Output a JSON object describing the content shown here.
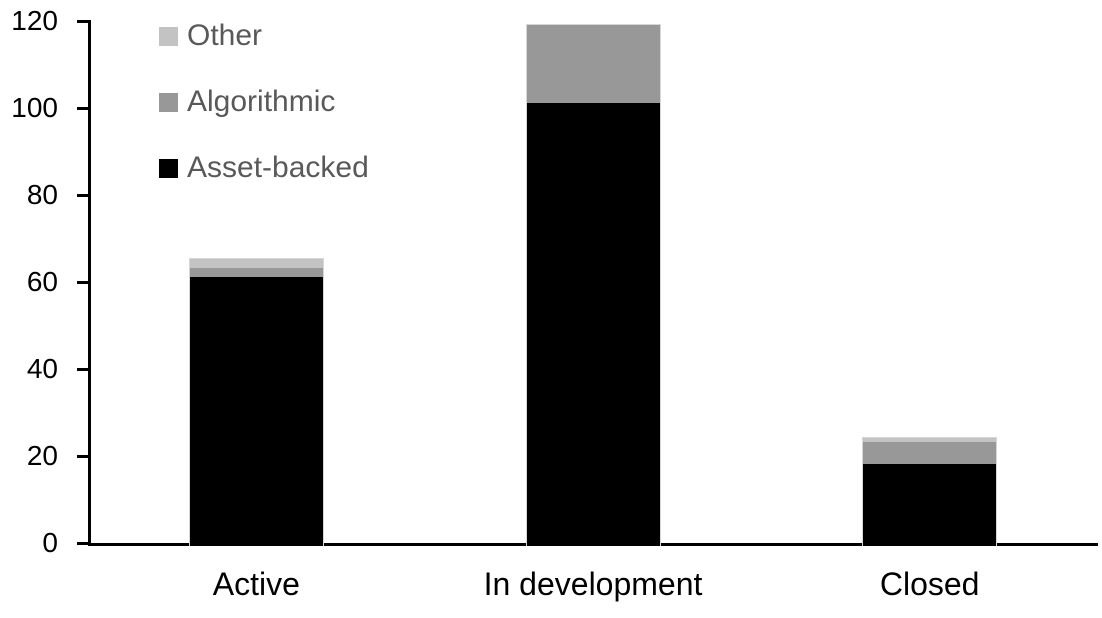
{
  "chart_data": {
    "type": "bar",
    "stacked": true,
    "title": "",
    "xlabel": "",
    "ylabel": "",
    "categories": [
      "Active",
      "In development",
      "Closed"
    ],
    "series": [
      {
        "name": "Asset-backed",
        "color": "#000000",
        "values": [
          62,
          102,
          19
        ]
      },
      {
        "name": "Algorithmic",
        "color": "#989898",
        "values": [
          2,
          18,
          5
        ]
      },
      {
        "name": "Other",
        "color": "#c3c3c3",
        "values": [
          2,
          0,
          1
        ]
      }
    ],
    "totals": [
      66,
      120,
      25
    ],
    "ylim": [
      0,
      120
    ],
    "yticks": [
      0,
      20,
      40,
      60,
      80,
      100,
      120
    ],
    "grid": false,
    "legend": {
      "position": "top-left",
      "order_top_to_bottom": [
        "Other",
        "Algorithmic",
        "Asset-backed"
      ],
      "text_color": "#595959"
    },
    "axis_color": "#000000",
    "bar_border_color": "#d6d6d6"
  }
}
